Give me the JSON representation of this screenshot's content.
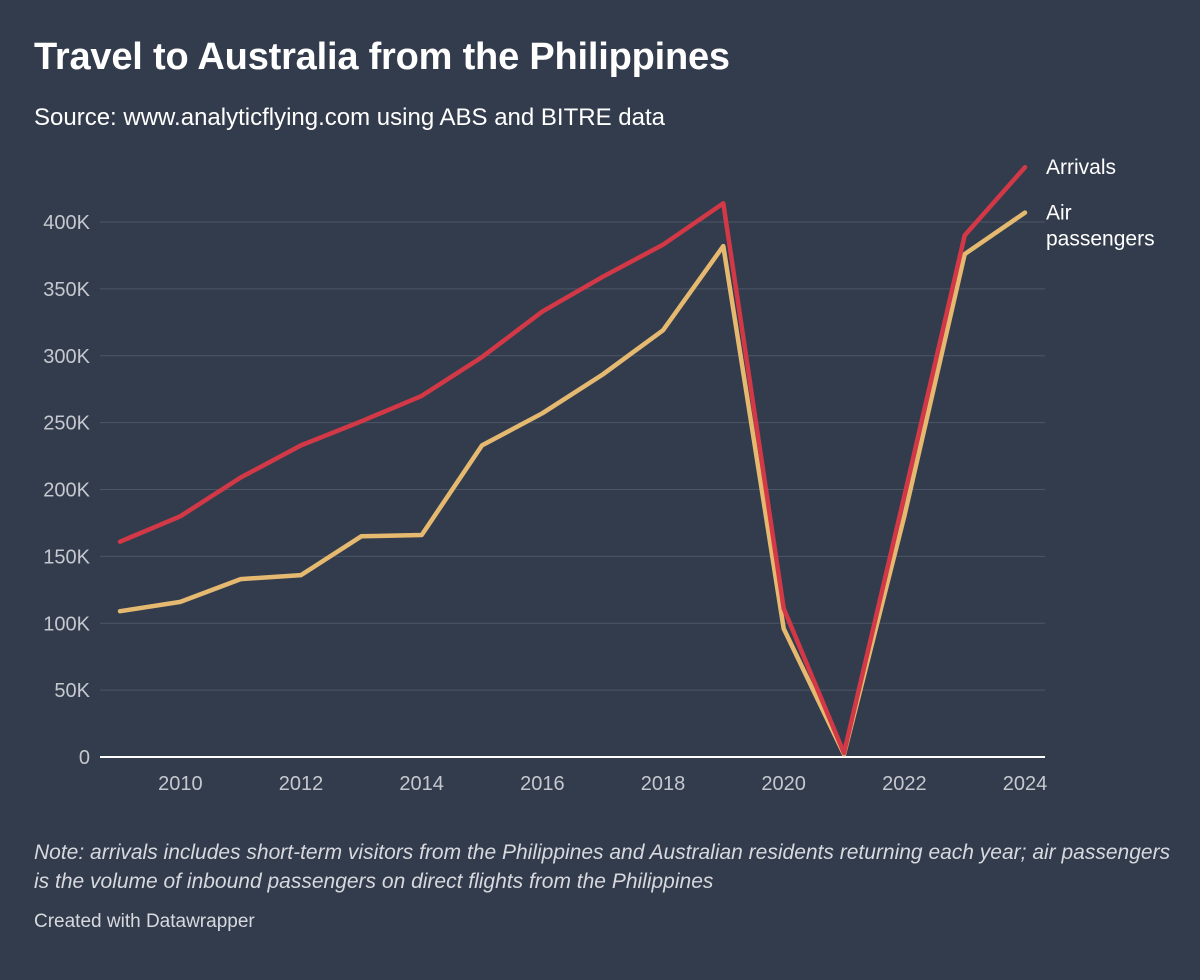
{
  "title": "Travel to Australia from the Philippines",
  "subtitle": "Source: www.analyticflying.com using ABS and BITRE data",
  "note": "Note: arrivals includes short-term visitors from the Philippines and Australian residents returning each year; air passengers is the volume of inbound passengers on direct flights from the Philippines",
  "credit": "Created with Datawrapper",
  "chart_data": {
    "type": "line",
    "title": "Travel to Australia from the Philippines",
    "subtitle": "Source: www.analyticflying.com using ABS and BITRE data",
    "xlabel": "",
    "ylabel": "",
    "x": [
      2009,
      2010,
      2011,
      2012,
      2013,
      2014,
      2015,
      2016,
      2017,
      2018,
      2019,
      2020,
      2021,
      2022,
      2023,
      2024
    ],
    "xlim": [
      2009,
      2024
    ],
    "ylim": [
      0,
      400000
    ],
    "x_ticks": [
      2010,
      2012,
      2014,
      2016,
      2018,
      2020,
      2022,
      2024
    ],
    "x_tick_labels": [
      "2010",
      "2012",
      "2014",
      "2016",
      "2018",
      "2020",
      "2022",
      "2024"
    ],
    "y_ticks": [
      0,
      50000,
      100000,
      150000,
      200000,
      250000,
      300000,
      350000,
      400000
    ],
    "y_tick_labels": [
      "0",
      "50K",
      "100K",
      "150K",
      "200K",
      "250K",
      "300K",
      "350K",
      "400K"
    ],
    "grid": "horizontal",
    "series": [
      {
        "name": "Arrivals",
        "color": "#d33847",
        "values": [
          161000,
          180000,
          209000,
          233000,
          251000,
          270000,
          299000,
          333000,
          359000,
          383000,
          414000,
          111000,
          3000,
          195000,
          390000,
          441000
        ]
      },
      {
        "name": "Air passengers",
        "label_lines": [
          "Air",
          "passengers"
        ],
        "color": "#e5b96f",
        "values": [
          109000,
          116000,
          133000,
          136000,
          165000,
          166000,
          233000,
          257000,
          286000,
          319000,
          382000,
          96000,
          2000,
          180000,
          376000,
          407000
        ]
      }
    ]
  }
}
